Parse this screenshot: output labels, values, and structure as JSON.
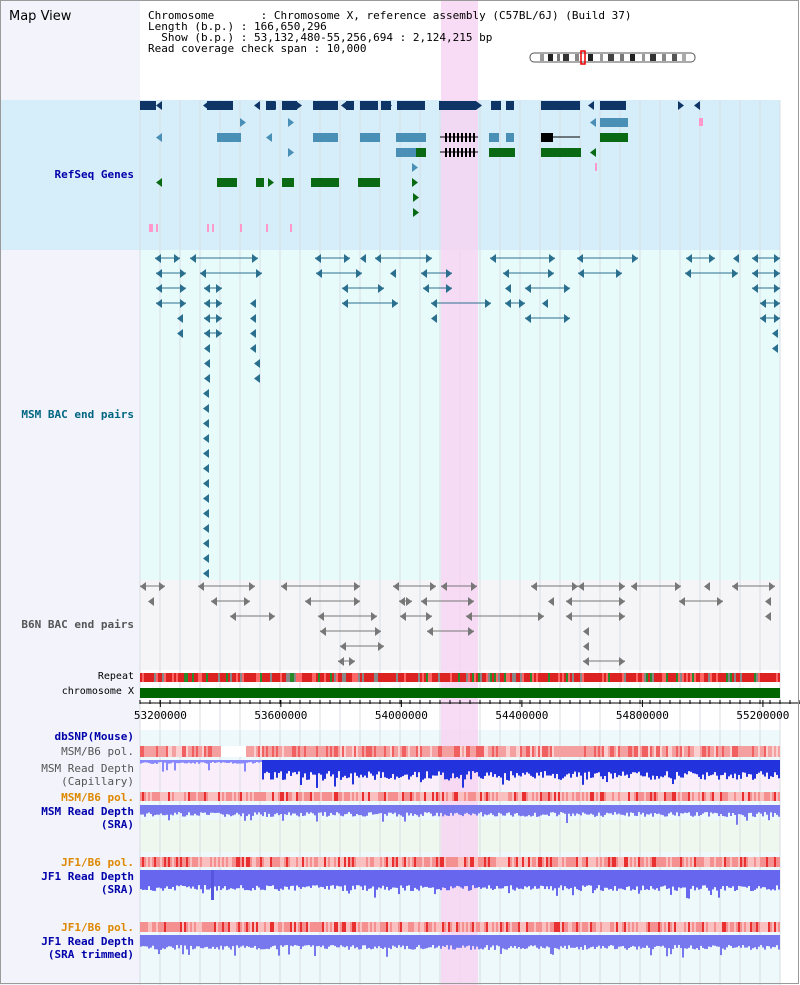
{
  "header": {
    "map_view": "Map View",
    "chromosome_line": "Chromosome       : Chromosome X, reference assembly (C57BL/6J) (Build 37)",
    "length_line": "Length (b.p.) : 166,650,296",
    "show_line": "  Show (b.p.) : 53,132,480-55,256,694 : 2,124,215 bp",
    "span_line": "Read coverage check span : 10,000"
  },
  "tracks": {
    "refseq": "RefSeq Genes",
    "msm_bac": "MSM BAC end pairs",
    "b6n_bac": "B6N BAC end pairs",
    "repeat": "Repeat",
    "chromosome": "chromosome X",
    "dbsnp": "dbSNP(Mouse)",
    "msm_b6_pol_1": "MSM/B6 pol.",
    "msm_depth_cap_1": "MSM Read Depth",
    "msm_depth_cap_2": "(Capillary)",
    "msm_b6_pol_2": "MSM/B6 pol.",
    "msm_depth_sra_1": "MSM Read Depth",
    "msm_depth_sra_2": "(SRA)",
    "jf1_b6_pol_1": "JF1/B6 pol.",
    "jf1_depth_sra_1": "JF1 Read Depth",
    "jf1_depth_sra_2": "(SRA)",
    "jf1_b6_pol_2": "JF1/B6 pol.",
    "jf1_depth_trim_1": "JF1 Read Depth",
    "jf1_depth_trim_2": "(SRA trimmed)"
  },
  "axis": {
    "start_bp": 53132480,
    "end_bp": 55256694,
    "ticks": [
      {
        "label": "53200000",
        "bp": 53200000
      },
      {
        "label": "53600000",
        "bp": 53600000
      },
      {
        "label": "54000000",
        "bp": 54000000
      },
      {
        "label": "54400000",
        "bp": 54400000
      },
      {
        "label": "54800000",
        "bp": 54800000
      },
      {
        "label": "55200000",
        "bp": 55200000
      }
    ]
  },
  "colors": {
    "refseq_bg": "#d6eef9",
    "bac_bg": "#e8fbfb",
    "b6n_bg": "#f5f5f7",
    "highlight": "#f7d5f2",
    "gene_dark": "#0e3565",
    "gene_mid": "#4a8fb5",
    "gene_green": "#0a6a14",
    "chromosome_bar": "#006600",
    "label_blue": "#0000aa",
    "label_orange": "#dd8800",
    "label_teal": "#006680"
  }
}
